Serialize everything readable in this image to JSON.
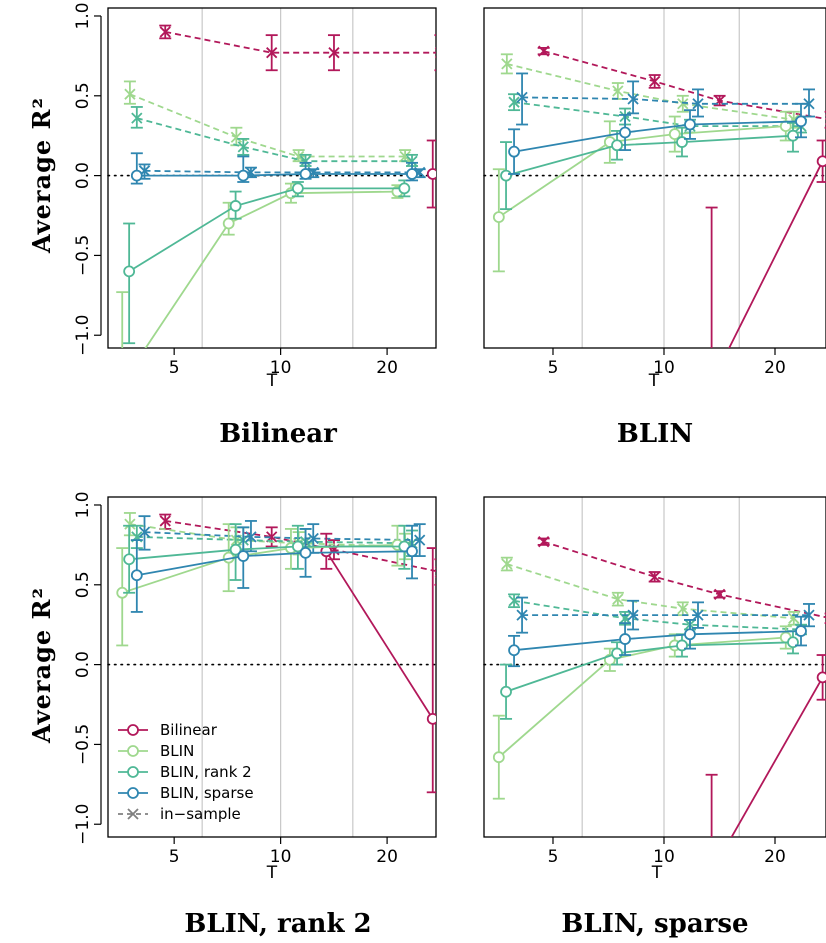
{
  "y_axis_label": "Average R²",
  "legend": {
    "items": [
      {
        "label": "Bilinear",
        "color": "#b2185a",
        "dashed": false,
        "marker": "o"
      },
      {
        "label": "BLIN",
        "color": "#9fd88e",
        "dashed": false,
        "marker": "o"
      },
      {
        "label": "BLIN, rank 2",
        "color": "#4fb896",
        "dashed": false,
        "marker": "o"
      },
      {
        "label": "BLIN, sparse",
        "color": "#2f86b0",
        "dashed": false,
        "marker": "o"
      },
      {
        "label": "in−sample",
        "color": "#808080",
        "dashed": true,
        "marker": "x"
      }
    ]
  },
  "chart_data": [
    {
      "type": "line",
      "title": "Bilinear",
      "xlabel": "T",
      "ylabel": "Average R²",
      "x_scale": "log",
      "x_ticks": [
        5,
        10,
        20
      ],
      "y_ticks": [
        -1.0,
        -0.5,
        0.0,
        0.5,
        1.0
      ],
      "y_tick_labels": [
        "−1.0",
        "−0.5",
        "0.0",
        "0.5",
        "1.0"
      ],
      "ylim": [
        -1.08,
        1.05
      ],
      "reference_line_y": 0,
      "T_groups": [
        4,
        8,
        12,
        24
      ],
      "out_of_sample": {
        "Bilinear": {
          "x": [
            24
          ],
          "y": [
            0.01
          ],
          "lo": [
            -0.2
          ],
          "hi": [
            0.22
          ]
        },
        "BLIN": {
          "x": [
            4,
            8,
            12,
            24
          ],
          "y": [
            -1.3,
            -0.3,
            -0.11,
            -0.1
          ],
          "lo": [
            -1.3,
            -0.37,
            -0.17,
            -0.14
          ],
          "hi": [
            -0.73,
            -0.17,
            -0.05,
            -0.06
          ]
        },
        "BLIN, rank 2": {
          "x": [
            4,
            8,
            12,
            24
          ],
          "y": [
            -0.6,
            -0.19,
            -0.08,
            -0.08
          ],
          "lo": [
            -1.05,
            -0.27,
            -0.13,
            -0.13
          ],
          "hi": [
            -0.3,
            -0.1,
            -0.04,
            -0.03
          ]
        },
        "BLIN, sparse": {
          "x": [
            4,
            8,
            12,
            24
          ],
          "y": [
            0.0,
            0.0,
            0.01,
            0.01
          ],
          "lo": [
            -0.05,
            -0.04,
            -0.02,
            -0.03
          ],
          "hi": [
            0.14,
            0.12,
            0.08,
            0.08
          ]
        }
      },
      "in_sample": {
        "Bilinear": {
          "x": [
            4,
            8,
            12,
            24
          ],
          "y": [
            0.9,
            0.77,
            0.77,
            0.77
          ],
          "lo": [
            0.86,
            0.66,
            0.66,
            0.66
          ],
          "hi": [
            0.94,
            0.88,
            0.88,
            0.88
          ]
        },
        "BLIN": {
          "x": [
            4,
            8,
            12,
            24
          ],
          "y": [
            0.51,
            0.24,
            0.12,
            0.12
          ],
          "lo": [
            0.45,
            0.19,
            0.09,
            0.09
          ],
          "hi": [
            0.59,
            0.3,
            0.16,
            0.16
          ]
        },
        "BLIN, rank 2": {
          "x": [
            4,
            8,
            12,
            24
          ],
          "y": [
            0.36,
            0.18,
            0.09,
            0.09
          ],
          "lo": [
            0.3,
            0.13,
            0.06,
            0.06
          ],
          "hi": [
            0.43,
            0.23,
            0.13,
            0.13
          ]
        },
        "BLIN, sparse": {
          "x": [
            4,
            8,
            12,
            24
          ],
          "y": [
            0.03,
            0.02,
            0.02,
            0.02
          ],
          "lo": [
            -0.02,
            -0.01,
            -0.01,
            -0.01
          ],
          "hi": [
            0.07,
            0.05,
            0.04,
            0.04
          ]
        }
      }
    },
    {
      "type": "line",
      "title": "BLIN",
      "xlabel": "T",
      "ylabel": "Average R²",
      "x_scale": "log",
      "x_ticks": [
        5,
        10,
        20
      ],
      "y_ticks": [
        -1.0,
        -0.5,
        0.0,
        0.5,
        1.0
      ],
      "y_tick_labels": [
        "−1.0",
        "−0.5",
        "0.0",
        "0.5",
        "1.0"
      ],
      "ylim": [
        -1.08,
        1.05
      ],
      "reference_line_y": 0,
      "T_groups": [
        4,
        8,
        12,
        24
      ],
      "out_of_sample": {
        "Bilinear": {
          "x": [
            12,
            24
          ],
          "y": [
            -1.3,
            0.09
          ],
          "lo": [
            -1.3,
            -0.04
          ],
          "hi": [
            -0.2,
            0.22
          ]
        },
        "BLIN": {
          "x": [
            4,
            8,
            12,
            24
          ],
          "y": [
            -0.26,
            0.21,
            0.26,
            0.31
          ],
          "lo": [
            -0.6,
            0.08,
            0.15,
            0.22
          ],
          "hi": [
            0.04,
            0.34,
            0.37,
            0.4
          ]
        },
        "BLIN, rank 2": {
          "x": [
            4,
            8,
            12,
            24
          ],
          "y": [
            0.0,
            0.19,
            0.21,
            0.25
          ],
          "lo": [
            -0.21,
            0.1,
            0.12,
            0.15
          ],
          "hi": [
            0.21,
            0.28,
            0.3,
            0.33
          ]
        },
        "BLIN, sparse": {
          "x": [
            4,
            8,
            12,
            24
          ],
          "y": [
            0.15,
            0.27,
            0.32,
            0.34
          ],
          "lo": [
            0.01,
            0.16,
            0.23,
            0.24
          ],
          "hi": [
            0.29,
            0.38,
            0.41,
            0.45
          ]
        }
      },
      "in_sample": {
        "Bilinear": {
          "x": [
            4,
            8,
            12,
            24
          ],
          "y": [
            0.78,
            0.59,
            0.47,
            0.35
          ],
          "lo": [
            0.76,
            0.55,
            0.44,
            0.3
          ],
          "hi": [
            0.8,
            0.63,
            0.5,
            0.4
          ]
        },
        "BLIN": {
          "x": [
            4,
            8,
            12,
            24
          ],
          "y": [
            0.7,
            0.53,
            0.45,
            0.35
          ],
          "lo": [
            0.64,
            0.48,
            0.4,
            0.3
          ],
          "hi": [
            0.76,
            0.58,
            0.5,
            0.4
          ]
        },
        "BLIN, rank 2": {
          "x": [
            4,
            8,
            12,
            24
          ],
          "y": [
            0.46,
            0.37,
            0.31,
            0.31
          ],
          "lo": [
            0.41,
            0.32,
            0.27,
            0.27
          ],
          "hi": [
            0.51,
            0.42,
            0.35,
            0.35
          ]
        },
        "BLIN, sparse": {
          "x": [
            4,
            8,
            12,
            24
          ],
          "y": [
            0.49,
            0.48,
            0.45,
            0.45
          ],
          "lo": [
            0.32,
            0.39,
            0.37,
            0.37
          ],
          "hi": [
            0.64,
            0.59,
            0.54,
            0.54
          ]
        }
      }
    },
    {
      "type": "line",
      "title": "BLIN, rank 2",
      "xlabel": "T",
      "ylabel": "Average R²",
      "x_scale": "log",
      "x_ticks": [
        5,
        10,
        20
      ],
      "y_ticks": [
        -1.0,
        -0.5,
        0.0,
        0.5,
        1.0
      ],
      "y_tick_labels": [
        "−1.0",
        "−0.5",
        "0.0",
        "0.5",
        "1.0"
      ],
      "ylim": [
        -1.08,
        1.05
      ],
      "reference_line_y": 0,
      "T_groups": [
        4,
        8,
        12,
        24
      ],
      "out_of_sample": {
        "Bilinear": {
          "x": [
            12,
            24
          ],
          "y": [
            0.71,
            -0.34
          ],
          "lo": [
            0.6,
            -0.8
          ],
          "hi": [
            0.82,
            0.73
          ]
        },
        "BLIN": {
          "x": [
            4,
            8,
            12,
            24
          ],
          "y": [
            0.45,
            0.67,
            0.73,
            0.75
          ],
          "lo": [
            0.12,
            0.46,
            0.6,
            0.62
          ],
          "hi": [
            0.73,
            0.88,
            0.85,
            0.87
          ]
        },
        "BLIN, rank 2": {
          "x": [
            4,
            8,
            12,
            24
          ],
          "y": [
            0.66,
            0.72,
            0.74,
            0.74
          ],
          "lo": [
            0.45,
            0.53,
            0.6,
            0.6
          ],
          "hi": [
            0.87,
            0.88,
            0.87,
            0.87
          ]
        },
        "BLIN, sparse": {
          "x": [
            4,
            8,
            12,
            24
          ],
          "y": [
            0.56,
            0.68,
            0.7,
            0.71
          ],
          "lo": [
            0.33,
            0.48,
            0.55,
            0.54
          ],
          "hi": [
            0.78,
            0.86,
            0.85,
            0.87
          ]
        }
      },
      "in_sample": {
        "Bilinear": {
          "x": [
            4,
            8,
            12,
            24
          ],
          "y": [
            0.9,
            0.8,
            0.72,
            0.58
          ],
          "lo": [
            0.85,
            0.74,
            0.66,
            0.5
          ],
          "hi": [
            0.94,
            0.86,
            0.78,
            0.66
          ]
        },
        "BLIN": {
          "x": [
            4,
            8,
            12,
            24
          ],
          "y": [
            0.88,
            0.78,
            0.76,
            0.74
          ],
          "lo": [
            0.81,
            0.71,
            0.69,
            0.66
          ],
          "hi": [
            0.95,
            0.86,
            0.83,
            0.82
          ]
        },
        "BLIN, rank 2": {
          "x": [
            4,
            8,
            12,
            24
          ],
          "y": [
            0.8,
            0.78,
            0.77,
            0.76
          ],
          "lo": [
            0.73,
            0.71,
            0.7,
            0.68
          ],
          "hi": [
            0.87,
            0.86,
            0.85,
            0.84
          ]
        },
        "BLIN, sparse": {
          "x": [
            4,
            8,
            12,
            24
          ],
          "y": [
            0.83,
            0.8,
            0.79,
            0.78
          ],
          "lo": [
            0.72,
            0.71,
            0.7,
            0.68
          ],
          "hi": [
            0.93,
            0.9,
            0.88,
            0.88
          ]
        }
      }
    },
    {
      "type": "line",
      "title": "BLIN, sparse",
      "xlabel": "T",
      "ylabel": "Average R²",
      "x_scale": "log",
      "x_ticks": [
        5,
        10,
        20
      ],
      "y_ticks": [
        -1.0,
        -0.5,
        0.0,
        0.5,
        1.0
      ],
      "y_tick_labels": [
        "−1.0",
        "−0.5",
        "0.0",
        "0.5",
        "1.0"
      ],
      "ylim": [
        -1.08,
        1.05
      ],
      "reference_line_y": 0,
      "T_groups": [
        4,
        8,
        12,
        24
      ],
      "out_of_sample": {
        "Bilinear": {
          "x": [
            12,
            24
          ],
          "y": [
            -1.3,
            -0.08
          ],
          "lo": [
            -1.3,
            -0.22
          ],
          "hi": [
            -0.69,
            0.06
          ]
        },
        "BLIN": {
          "x": [
            4,
            8,
            12,
            24
          ],
          "y": [
            -0.58,
            0.03,
            0.12,
            0.17
          ],
          "lo": [
            -0.84,
            -0.04,
            0.05,
            0.1
          ],
          "hi": [
            -0.32,
            0.1,
            0.19,
            0.24
          ]
        },
        "BLIN, rank 2": {
          "x": [
            4,
            8,
            12,
            24
          ],
          "y": [
            -0.17,
            0.07,
            0.12,
            0.14
          ],
          "lo": [
            -0.34,
            0.0,
            0.05,
            0.07
          ],
          "hi": [
            0.0,
            0.14,
            0.19,
            0.21
          ]
        },
        "BLIN, sparse": {
          "x": [
            4,
            8,
            12,
            24
          ],
          "y": [
            0.09,
            0.16,
            0.19,
            0.21
          ],
          "lo": [
            -0.01,
            0.06,
            0.1,
            0.12
          ],
          "hi": [
            0.18,
            0.26,
            0.28,
            0.3
          ]
        }
      },
      "in_sample": {
        "Bilinear": {
          "x": [
            4,
            8,
            12,
            24
          ],
          "y": [
            0.77,
            0.55,
            0.44,
            0.29
          ],
          "lo": [
            0.75,
            0.52,
            0.42,
            0.26
          ],
          "hi": [
            0.79,
            0.58,
            0.46,
            0.32
          ]
        },
        "BLIN": {
          "x": [
            4,
            8,
            12,
            24
          ],
          "y": [
            0.63,
            0.41,
            0.35,
            0.29
          ],
          "lo": [
            0.59,
            0.37,
            0.31,
            0.25
          ],
          "hi": [
            0.67,
            0.45,
            0.39,
            0.33
          ]
        },
        "BLIN, rank 2": {
          "x": [
            4,
            8,
            12,
            24
          ],
          "y": [
            0.4,
            0.29,
            0.25,
            0.22
          ],
          "lo": [
            0.36,
            0.25,
            0.22,
            0.19
          ],
          "hi": [
            0.44,
            0.33,
            0.28,
            0.25
          ]
        },
        "BLIN, sparse": {
          "x": [
            4,
            8,
            12,
            24
          ],
          "y": [
            0.31,
            0.31,
            0.31,
            0.31
          ],
          "lo": [
            0.2,
            0.22,
            0.23,
            0.24
          ],
          "hi": [
            0.42,
            0.4,
            0.39,
            0.38
          ]
        }
      }
    }
  ]
}
